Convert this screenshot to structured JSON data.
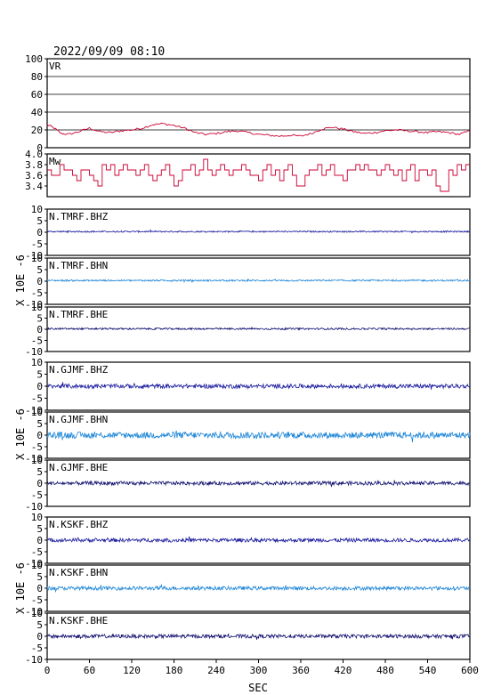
{
  "header": {
    "datetime": "2022/09/09  08:10"
  },
  "x_axis": {
    "label": "SEC",
    "range": [
      0,
      600
    ],
    "ticks": [
      "0",
      "60",
      "120",
      "180",
      "240",
      "300",
      "360",
      "420",
      "480",
      "540",
      "600"
    ]
  },
  "y_group_label": "X 10E -6",
  "colors": {
    "frame": "#000000",
    "vr_line": "#cc0033",
    "mw_line": "#cc0033",
    "bhz": "#1a1a9e",
    "bhn": "#1f86d6",
    "bhe": "#101070"
  },
  "chart_data": [
    {
      "type": "line",
      "id": "vr",
      "label": "VR",
      "ylim": [
        0,
        100
      ],
      "yticks": [
        "100",
        "80",
        "60",
        "40",
        "20",
        "0"
      ],
      "grid": true,
      "x": [
        0,
        10,
        20,
        30,
        45,
        60,
        75,
        90,
        105,
        120,
        135,
        150,
        165,
        180,
        195,
        210,
        225,
        240,
        255,
        270,
        285,
        300,
        315,
        330,
        345,
        360,
        375,
        390,
        405,
        420,
        435,
        450,
        465,
        480,
        495,
        510,
        525,
        540,
        555,
        570,
        585,
        600
      ],
      "values": [
        26,
        22,
        16,
        15,
        18,
        22,
        18,
        17,
        19,
        20,
        22,
        26,
        27,
        25,
        22,
        17,
        15,
        16,
        18,
        19,
        17,
        15,
        14,
        13,
        14,
        13,
        16,
        21,
        23,
        21,
        18,
        16,
        17,
        19,
        20,
        19,
        18,
        17,
        18,
        17,
        15,
        19
      ]
    },
    {
      "type": "line",
      "id": "mw",
      "label": "Mw",
      "step": true,
      "ylim": [
        3.2,
        4.0
      ],
      "yticks": [
        "4.0",
        "3.8",
        "3.6",
        "3.4"
      ],
      "x": [
        0,
        6,
        12,
        18,
        24,
        30,
        36,
        42,
        48,
        54,
        60,
        66,
        72,
        78,
        84,
        90,
        96,
        102,
        108,
        114,
        120,
        126,
        132,
        138,
        144,
        150,
        156,
        162,
        168,
        174,
        180,
        186,
        192,
        198,
        204,
        210,
        216,
        222,
        228,
        234,
        240,
        246,
        252,
        258,
        264,
        270,
        276,
        282,
        288,
        294,
        300,
        306,
        312,
        318,
        324,
        330,
        336,
        342,
        348,
        354,
        360,
        366,
        372,
        378,
        384,
        390,
        396,
        402,
        408,
        414,
        420,
        426,
        432,
        438,
        444,
        450,
        456,
        462,
        468,
        474,
        480,
        486,
        492,
        498,
        504,
        510,
        516,
        522,
        528,
        534,
        540,
        546,
        552,
        558,
        564,
        570,
        576,
        582,
        588,
        594
      ],
      "values": [
        3.7,
        3.6,
        3.6,
        3.8,
        3.7,
        3.7,
        3.6,
        3.5,
        3.7,
        3.7,
        3.6,
        3.5,
        3.4,
        3.8,
        3.7,
        3.8,
        3.6,
        3.7,
        3.8,
        3.7,
        3.7,
        3.6,
        3.7,
        3.8,
        3.6,
        3.5,
        3.6,
        3.7,
        3.8,
        3.6,
        3.4,
        3.5,
        3.7,
        3.7,
        3.8,
        3.6,
        3.7,
        3.9,
        3.7,
        3.6,
        3.7,
        3.8,
        3.7,
        3.6,
        3.7,
        3.7,
        3.8,
        3.7,
        3.6,
        3.6,
        3.5,
        3.7,
        3.8,
        3.6,
        3.7,
        3.5,
        3.7,
        3.8,
        3.6,
        3.4,
        3.4,
        3.6,
        3.7,
        3.7,
        3.8,
        3.6,
        3.7,
        3.8,
        3.6,
        3.6,
        3.5,
        3.7,
        3.7,
        3.8,
        3.7,
        3.8,
        3.7,
        3.7,
        3.6,
        3.7,
        3.8,
        3.7,
        3.6,
        3.7,
        3.5,
        3.7,
        3.8,
        3.5,
        3.7,
        3.7,
        3.6,
        3.7,
        3.4,
        3.3,
        3.3,
        3.7,
        3.6,
        3.8,
        3.7,
        3.8
      ]
    },
    {
      "type": "line",
      "id": "n-tmrf-bhz",
      "label": "N.TMRF.BHZ",
      "color_key": "bhz",
      "ylim": [
        -10,
        10
      ],
      "yticks": [
        "10",
        "5",
        "0",
        "-5",
        "-10"
      ],
      "level": 0.3,
      "noise_amplitude": 0.3
    },
    {
      "type": "line",
      "id": "n-tmrf-bhn",
      "label": "N.TMRF.BHN",
      "color_key": "bhn",
      "ylim": [
        -10,
        10
      ],
      "yticks": [
        "10",
        "5",
        "0",
        "-5",
        "-10"
      ],
      "level": 0.3,
      "noise_amplitude": 0.35
    },
    {
      "type": "line",
      "id": "n-tmrf-bhe",
      "label": "N.TMRF.BHE",
      "color_key": "bhe",
      "ylim": [
        -10,
        10
      ],
      "yticks": [
        "10",
        "5",
        "0",
        "-5",
        "-10"
      ],
      "level": 0.2,
      "noise_amplitude": 0.4
    },
    {
      "type": "line",
      "id": "n-gjmf-bhz",
      "label": "N.GJMF.BHZ",
      "color_key": "bhz",
      "ylim": [
        -10,
        10
      ],
      "yticks": [
        "10",
        "5",
        "0",
        "-5",
        "-10"
      ],
      "level": 0.0,
      "noise_amplitude": 0.9
    },
    {
      "type": "line",
      "id": "n-gjmf-bhn",
      "label": "N.GJMF.BHN",
      "color_key": "bhn",
      "ylim": [
        -10,
        10
      ],
      "yticks": [
        "10",
        "5",
        "0",
        "-5",
        "-10"
      ],
      "level": 0.0,
      "noise_amplitude": 1.4
    },
    {
      "type": "line",
      "id": "n-gjmf-bhe",
      "label": "N.GJMF.BHE",
      "color_key": "bhe",
      "ylim": [
        -10,
        10
      ],
      "yticks": [
        "10",
        "5",
        "0",
        "-5",
        "-10"
      ],
      "level": 0.0,
      "noise_amplitude": 0.8
    },
    {
      "type": "line",
      "id": "n-kskf-bhz",
      "label": "N.KSKF.BHZ",
      "color_key": "bhz",
      "ylim": [
        -10,
        10
      ],
      "yticks": [
        "10",
        "5",
        "0",
        "-5",
        "-10"
      ],
      "level": 0.0,
      "noise_amplitude": 0.8
    },
    {
      "type": "line",
      "id": "n-kskf-bhn",
      "label": "N.KSKF.BHN",
      "color_key": "bhn",
      "ylim": [
        -10,
        10
      ],
      "yticks": [
        "10",
        "5",
        "0",
        "-5",
        "-10"
      ],
      "level": 0.0,
      "noise_amplitude": 0.8
    },
    {
      "type": "line",
      "id": "n-kskf-bhe",
      "label": "N.KSKF.BHE",
      "color_key": "bhe",
      "ylim": [
        -10,
        10
      ],
      "yticks": [
        "10",
        "5",
        "0",
        "-5",
        "-10"
      ],
      "level": 0.0,
      "noise_amplitude": 0.8
    }
  ]
}
